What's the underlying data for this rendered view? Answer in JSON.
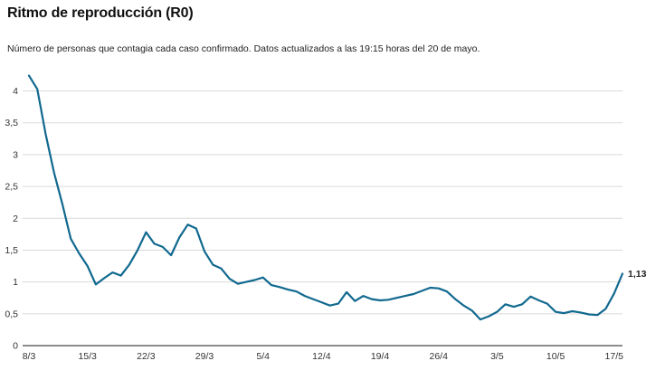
{
  "header": {
    "title": "Ritmo de reproducción (R0)",
    "subtitle": "Número de personas que contagia cada caso confirmado. Datos actualizados a las 19:15 horas del 20 de mayo."
  },
  "chart_data": {
    "type": "line",
    "title": "Ritmo de reproducción (R0)",
    "xlabel": "",
    "ylabel": "",
    "grid": true,
    "legend": "none",
    "ylim": [
      0,
      4.35
    ],
    "y_ticks": [
      0,
      0.5,
      1,
      1.5,
      2,
      2.5,
      3,
      3.5,
      4
    ],
    "y_tick_labels": [
      "0",
      "0,5",
      "1",
      "1,5",
      "2",
      "2,5",
      "3",
      "3,5",
      "4"
    ],
    "x_tick_labels": [
      "8/3",
      "15/3",
      "22/3",
      "29/3",
      "5/4",
      "12/4",
      "19/4",
      "26/4",
      "3/5",
      "10/5",
      "17/5"
    ],
    "x_tick_every_days": 7,
    "end_label": "1,13",
    "x": [
      "8/3",
      "9/3",
      "10/3",
      "11/3",
      "12/3",
      "13/3",
      "14/3",
      "15/3",
      "16/3",
      "17/3",
      "18/3",
      "19/3",
      "20/3",
      "21/3",
      "22/3",
      "23/3",
      "24/3",
      "25/3",
      "26/3",
      "27/3",
      "28/3",
      "29/3",
      "30/3",
      "31/3",
      "1/4",
      "2/4",
      "3/4",
      "4/4",
      "5/4",
      "6/4",
      "7/4",
      "8/4",
      "9/4",
      "10/4",
      "11/4",
      "12/4",
      "13/4",
      "14/4",
      "15/4",
      "16/4",
      "17/4",
      "18/4",
      "19/4",
      "20/4",
      "21/4",
      "22/4",
      "23/4",
      "24/4",
      "25/4",
      "26/4",
      "27/4",
      "28/4",
      "29/4",
      "30/4",
      "1/5",
      "2/5",
      "3/5",
      "4/5",
      "5/5",
      "6/5",
      "7/5",
      "8/5",
      "9/5",
      "10/5",
      "11/5",
      "12/5",
      "13/5",
      "14/5",
      "15/5",
      "16/5",
      "17/5",
      "18/5"
    ],
    "values": [
      4.24,
      4.03,
      3.32,
      2.72,
      2.22,
      1.68,
      1.45,
      1.25,
      0.96,
      1.06,
      1.15,
      1.1,
      1.27,
      1.5,
      1.78,
      1.6,
      1.55,
      1.42,
      1.7,
      1.9,
      1.84,
      1.48,
      1.27,
      1.21,
      1.05,
      0.97,
      1.0,
      1.03,
      1.07,
      0.95,
      0.92,
      0.88,
      0.85,
      0.78,
      0.73,
      0.68,
      0.63,
      0.66,
      0.84,
      0.7,
      0.78,
      0.73,
      0.71,
      0.72,
      0.75,
      0.78,
      0.81,
      0.86,
      0.91,
      0.9,
      0.85,
      0.73,
      0.63,
      0.55,
      0.41,
      0.46,
      0.53,
      0.65,
      0.61,
      0.65,
      0.77,
      0.71,
      0.66,
      0.53,
      0.51,
      0.54,
      0.52,
      0.49,
      0.48,
      0.58,
      0.82,
      1.13
    ],
    "final_value": 1.13,
    "colors": {
      "line": "#11698f",
      "grid": "#d9d9d9",
      "baseline": "#8c8c8c",
      "tick_text": "#333333",
      "end_label_text": "#222222"
    }
  }
}
